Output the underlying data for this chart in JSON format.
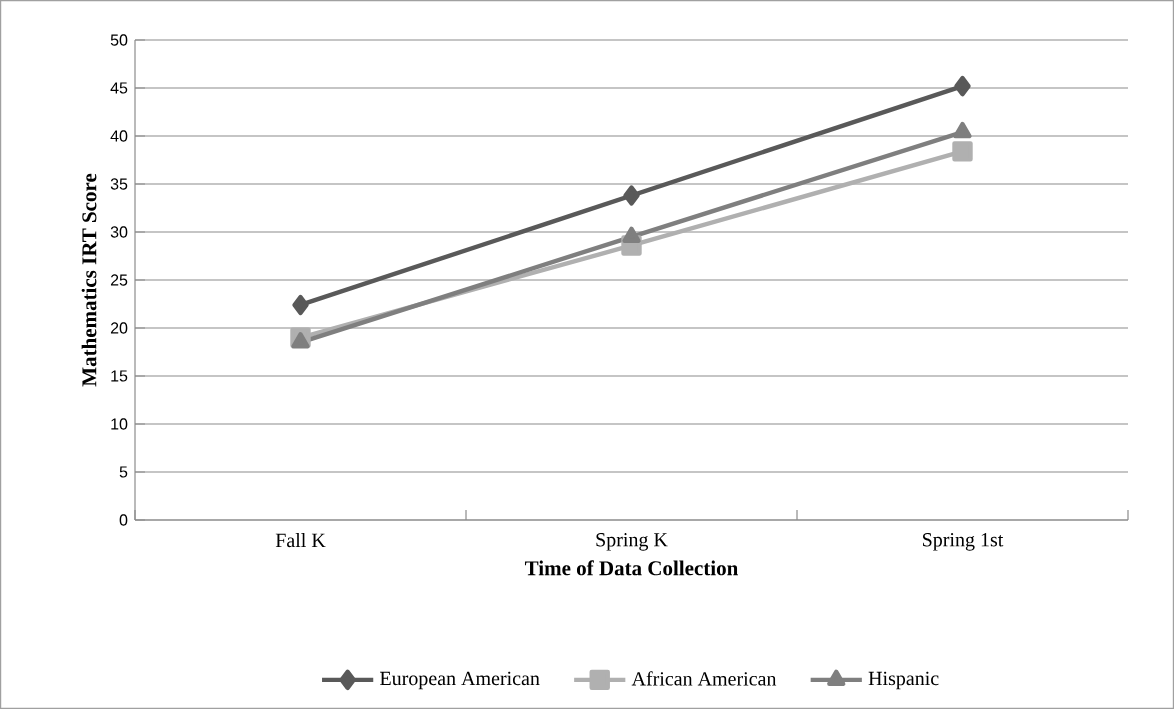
{
  "chart_data": {
    "type": "line",
    "xlabel": "Time of Data Collection",
    "ylabel": "Mathematics IRT Score",
    "categories": [
      "Fall K",
      "Spring K",
      "Spring 1st"
    ],
    "series": [
      {
        "name": "European American",
        "color": "#595959",
        "marker": "diamond",
        "values": [
          22.4,
          33.8,
          45.2
        ]
      },
      {
        "name": "African American",
        "color": "#b0b0b0",
        "marker": "square",
        "values": [
          19,
          28.6,
          38.4
        ]
      },
      {
        "name": "Hispanic",
        "color": "#7f7f7f",
        "marker": "triangle",
        "values": [
          18.5,
          29.5,
          40.4
        ]
      }
    ],
    "ylim": [
      0,
      50
    ],
    "yticks": [
      0,
      5,
      10,
      15,
      20,
      25,
      30,
      35,
      40,
      45,
      50
    ],
    "grid": "y",
    "legend": "bottom",
    "line_style": "solid"
  }
}
